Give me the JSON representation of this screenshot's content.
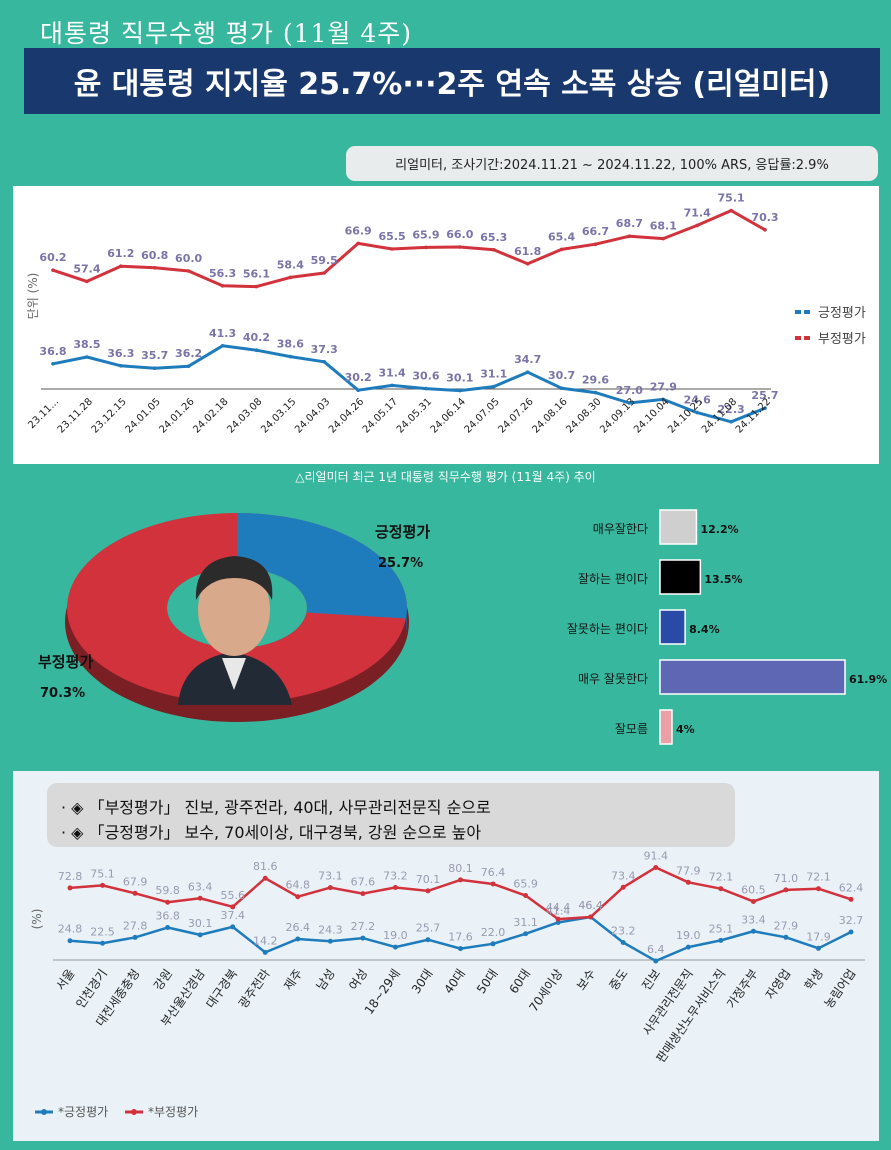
{
  "header": {
    "kicker": "대통령 직무수행 평가 (11월 4주)",
    "headline": "윤 대통령 지지율 25.7%···2주 연속 소폭 상승 (리얼미터)",
    "survey_info": "리얼미터, 조사기간:2024.11.21 ~ 2024.11.22, 100% ARS, 응답률:2.9%"
  },
  "trend": {
    "caption": "△리얼미터 최근 1년 대통령 직무수행 평가 (11월 4주) 추이",
    "unit_label": "단위 (%)",
    "legend_pos": "긍정평가",
    "legend_neg": "부정평가",
    "colors": {
      "pos": "#1f7cbc",
      "neg": "#d1323c"
    }
  },
  "chart_data": [
    {
      "type": "line",
      "categories": [
        "23.11...",
        "23.11.28",
        "23.12.15",
        "24.01.05",
        "24.01.26",
        "24.02.18",
        "24.03.08",
        "24.03.15",
        "24.04.03",
        "24.04.26",
        "24.05.17",
        "24.05.31",
        "24.06.14",
        "24.07.05",
        "24.07.26",
        "24.08.16",
        "24.08.30",
        "24.09.13",
        "24.10.04",
        "24.10.25",
        "24.11.08",
        "24.11.22"
      ],
      "series": [
        {
          "name": "긍정평가",
          "values": [
            36.8,
            38.5,
            36.3,
            35.7,
            36.2,
            41.3,
            40.2,
            38.6,
            37.3,
            30.2,
            31.4,
            30.6,
            30.1,
            31.1,
            34.7,
            30.7,
            29.6,
            27.0,
            27.9,
            24.6,
            22.3,
            25.7
          ]
        },
        {
          "name": "부정평가",
          "values": [
            60.2,
            57.4,
            61.2,
            60.8,
            60.0,
            56.3,
            56.1,
            58.4,
            59.5,
            66.9,
            65.5,
            65.9,
            66.0,
            65.3,
            61.8,
            65.4,
            66.7,
            68.7,
            68.1,
            71.4,
            75.1,
            70.3
          ]
        }
      ],
      "ylabel": "단위 (%)"
    },
    {
      "type": "pie",
      "labels": [
        "긍정평가",
        "부정평가"
      ],
      "values": [
        25.7,
        70.3
      ],
      "value_labels": [
        "25.7%",
        "70.3%"
      ],
      "colors": [
        "#1f7cbc",
        "#d1323c"
      ]
    },
    {
      "type": "bar",
      "orientation": "horizontal",
      "categories": [
        "매우잘한다",
        "잘하는 편이다",
        "잘못하는 편이다",
        "매우 잘못한다",
        "잘모름"
      ],
      "values": [
        12.2,
        13.5,
        8.4,
        61.9,
        4
      ],
      "value_labels": [
        "12.2%",
        "13.5%",
        "8.4%",
        "61.9%",
        "4%"
      ],
      "colors": [
        "#cfcfcf",
        "#000000",
        "#2a4aa8",
        "#5e67b4",
        "#eba0a8"
      ]
    },
    {
      "type": "line",
      "categories": [
        "서울",
        "인천경기",
        "대전세종충청",
        "강원",
        "부산울산경남",
        "대구경북",
        "광주전라",
        "제주",
        "남성",
        "여성",
        "18~29세",
        "30대",
        "40대",
        "50대",
        "60대",
        "70세이상",
        "보수",
        "중도",
        "진보",
        "사무관리전문직",
        "판매생산노무서비스직",
        "가정주부",
        "자영업",
        "학생",
        "농림어업"
      ],
      "series": [
        {
          "name": "*긍정평가",
          "values": [
            24.8,
            22.5,
            27.8,
            36.8,
            30.1,
            37.4,
            14.2,
            26.4,
            24.3,
            27.2,
            19.0,
            25.7,
            17.6,
            22.0,
            31.1,
            41.4,
            46.4,
            23.2,
            6.4,
            19.0,
            25.1,
            33.4,
            27.9,
            17.9,
            32.7
          ]
        },
        {
          "name": "*부정평가",
          "values": [
            72.8,
            75.1,
            67.9,
            59.8,
            63.4,
            55.6,
            81.6,
            64.8,
            73.1,
            67.6,
            73.2,
            70.1,
            80.1,
            76.4,
            65.9,
            44.4,
            46.4,
            73.4,
            91.4,
            77.9,
            72.1,
            60.5,
            71.0,
            72.1,
            62.4
          ]
        }
      ],
      "ylabel": "(%)"
    }
  ],
  "donut": {
    "pos_label": "긍정평가",
    "pos_value": "25.7%",
    "neg_label": "부정평가",
    "neg_value": "70.3%"
  },
  "demo": {
    "ylabel": "(%)",
    "notes": [
      "· ◈ 「부정평가」 진보, 광주전라, 40대, 사무관리전문직 순으로",
      "· ◈ 「긍정평가」 보수, 70세이상, 대구경북, 강원 순으로 높아"
    ],
    "legend_pos": "*긍정평가",
    "legend_neg": "*부정평가"
  }
}
